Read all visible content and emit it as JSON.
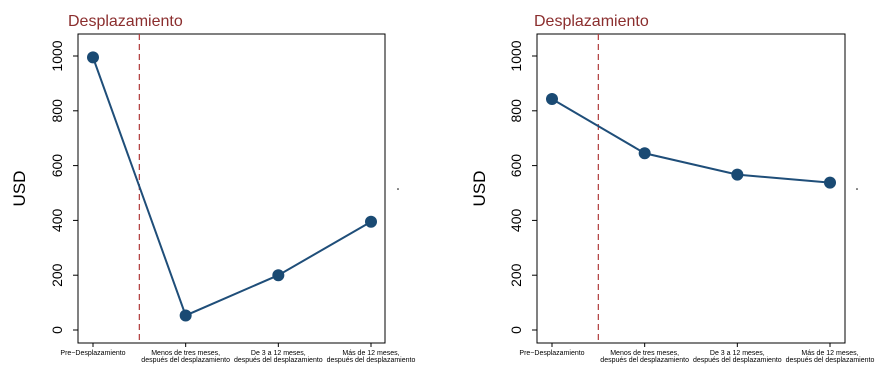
{
  "colors": {
    "line": "#1f4e79",
    "marker": "#1a4a73",
    "event_line": "#b03a3a",
    "title": "#8b2e2e",
    "axis": "#000000"
  },
  "chart_data": [
    {
      "type": "line",
      "title": "Desplazamiento",
      "ylabel": "USD",
      "xlabel": "",
      "ylim": [
        0,
        1000
      ],
      "yticks": [
        0,
        200,
        400,
        600,
        800,
        1000
      ],
      "categories": [
        [
          "Pre−Desplazamiento"
        ],
        [
          "Menos de tres meses,",
          "después del desplazamiento"
        ],
        [
          "De 3 a 12 meses,",
          "después del desplazamiento"
        ],
        [
          "Más de 12 meses,",
          "después del desplazamiento"
        ]
      ],
      "values": [
        995,
        53,
        200,
        395
      ],
      "event_line_after_category": 0,
      "grid": false
    },
    {
      "type": "line",
      "title": "Desplazamiento",
      "ylabel": "USD",
      "xlabel": "",
      "ylim": [
        0,
        1000
      ],
      "yticks": [
        0,
        200,
        400,
        600,
        800,
        1000
      ],
      "categories": [
        [
          "Pre−Desplazamiento"
        ],
        [
          "Menos de tres meses,",
          "después del desplazamiento"
        ],
        [
          "De 3 a 12 meses,",
          "después del desplazamiento"
        ],
        [
          "Más de 12 meses,",
          "después del desplazamiento"
        ]
      ],
      "values": [
        843,
        645,
        567,
        538
      ],
      "event_line_after_category": 0,
      "grid": false
    }
  ]
}
